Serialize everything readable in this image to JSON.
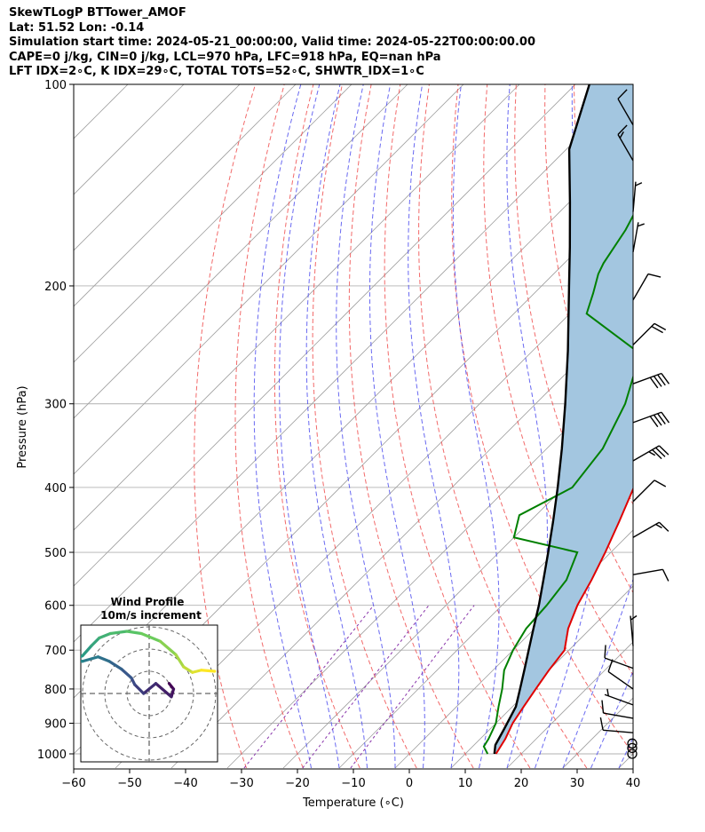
{
  "header": {
    "line1": "SkewTLogP BTTower_AMOF",
    "line2": "Lat: 51.52   Lon: -0.14",
    "line3": "Simulation start time: 2024-05-21_00:00:00, Valid time: 2024-05-22T00:00:00.00",
    "line4": "CAPE=0 j/kg, CIN=0 j/kg, LCL=970 hPa, LFC=918 hPa, EQ=nan hPa",
    "line5": "LFT IDX=2∘C, K IDX=29∘C, TOTAL TOTS=52∘C, SHWTR_IDX=1∘C"
  },
  "chart_data": {
    "type": "skewt-logp",
    "xlabel": "Temperature (∘C)",
    "ylabel": "Pressure (hPa)",
    "xlim": [
      -60,
      40
    ],
    "ylim": [
      1050,
      100
    ],
    "x_ticks": [
      -60,
      -50,
      -40,
      -30,
      -20,
      -10,
      0,
      10,
      20,
      30,
      40
    ],
    "x_tick_labels": [
      "−60",
      "−50",
      "−40",
      "−30",
      "−20",
      "−10",
      "0",
      "10",
      "20",
      "30",
      "40"
    ],
    "y_ticks": [
      100,
      200,
      300,
      400,
      500,
      600,
      700,
      800,
      900,
      1000
    ],
    "y_tick_labels": [
      "100",
      "200",
      "300",
      "400",
      "500",
      "600",
      "700",
      "800",
      "900",
      "1000"
    ],
    "grid": true,
    "colors": {
      "temperature": "#e00000",
      "dewpoint": "#008000",
      "parcel": "#000000",
      "cape_fill": "#a3c6e0",
      "dry_adiabat": "#f05050",
      "moist_adiabat": "#4444ee",
      "mixing_ratio": "#8833aa",
      "isotherm": "#a0a0a0"
    },
    "series": [
      {
        "key": "temperature",
        "points": [
          [
            15.5,
            1000
          ],
          [
            14.5,
            950
          ],
          [
            13.0,
            900
          ],
          [
            12.0,
            850
          ],
          [
            11.0,
            800
          ],
          [
            10.0,
            750
          ],
          [
            9.2,
            700
          ],
          [
            6.0,
            650
          ],
          [
            3.5,
            600
          ],
          [
            1.5,
            550
          ],
          [
            -1.0,
            500
          ],
          [
            -4.0,
            450
          ],
          [
            -7.5,
            400
          ],
          [
            -11.5,
            350
          ],
          [
            -16.0,
            300
          ],
          [
            -21.0,
            270
          ],
          [
            -24.5,
            250
          ],
          [
            -27.5,
            230
          ],
          [
            -30.5,
            210
          ],
          [
            -36.5,
            190
          ],
          [
            -42.0,
            170
          ],
          [
            -47.0,
            150
          ],
          [
            -52.5,
            130
          ],
          [
            -56.5,
            115
          ],
          [
            -58.5,
            100
          ]
        ]
      },
      {
        "key": "dewpoint",
        "points": [
          [
            14.0,
            1000
          ],
          [
            12.0,
            975
          ],
          [
            11.5,
            950
          ],
          [
            10.0,
            900
          ],
          [
            7.5,
            850
          ],
          [
            5.0,
            800
          ],
          [
            2.0,
            750
          ],
          [
            0.0,
            700
          ],
          [
            -1.5,
            650
          ],
          [
            -2.0,
            600
          ],
          [
            -3.0,
            550
          ],
          [
            -6.0,
            500
          ],
          [
            -20.0,
            475
          ],
          [
            -23.0,
            440
          ],
          [
            -18.5,
            400
          ],
          [
            -20.0,
            350
          ],
          [
            -24.0,
            300
          ],
          [
            -28.5,
            265
          ],
          [
            -31.5,
            250
          ],
          [
            -47.0,
            220
          ],
          [
            -49.5,
            205
          ],
          [
            -52.0,
            192
          ],
          [
            -53.0,
            185
          ],
          [
            -55.0,
            165
          ],
          [
            -59.0,
            140
          ],
          [
            -64.0,
            115
          ],
          [
            -67.0,
            100
          ]
        ]
      },
      {
        "key": "parcel",
        "points": [
          [
            15.2,
            1000
          ],
          [
            13.8,
            970
          ],
          [
            12.5,
            918
          ],
          [
            10.6,
            850
          ],
          [
            8.2,
            800
          ],
          [
            5.6,
            750
          ],
          [
            2.8,
            700
          ],
          [
            -0.2,
            650
          ],
          [
            -3.4,
            600
          ],
          [
            -7.1,
            550
          ],
          [
            -11.2,
            500
          ],
          [
            -15.8,
            450
          ],
          [
            -21.1,
            400
          ],
          [
            -27.3,
            350
          ],
          [
            -34.7,
            300
          ],
          [
            -43.7,
            250
          ],
          [
            -55.1,
            200
          ],
          [
            -61.9,
            175
          ],
          [
            -69.9,
            150
          ],
          [
            -79.5,
            125
          ],
          [
            -87.5,
            100
          ]
        ]
      }
    ],
    "wind_barbs": [
      {
        "pressure": 1000,
        "calm": true
      },
      {
        "pressure": 980,
        "calm": true
      },
      {
        "pressure": 965,
        "calm": true
      },
      {
        "pressure": 930,
        "speed_kt": 10,
        "direction_deg": 275
      },
      {
        "pressure": 885,
        "speed_kt": 10,
        "direction_deg": 280
      },
      {
        "pressure": 845,
        "speed_kt": 5,
        "direction_deg": 290
      },
      {
        "pressure": 800,
        "speed_kt": 10,
        "direction_deg": 305
      },
      {
        "pressure": 745,
        "speed_kt": 10,
        "direction_deg": 290
      },
      {
        "pressure": 690,
        "speed_kt": 5,
        "direction_deg": 355
      },
      {
        "pressure": 540,
        "speed_kt": 10,
        "direction_deg": 80
      },
      {
        "pressure": 475,
        "speed_kt": 15,
        "direction_deg": 60
      },
      {
        "pressure": 420,
        "speed_kt": 10,
        "direction_deg": 45
      },
      {
        "pressure": 365,
        "speed_kt": 35,
        "direction_deg": 60
      },
      {
        "pressure": 320,
        "speed_kt": 40,
        "direction_deg": 70
      },
      {
        "pressure": 280,
        "speed_kt": 40,
        "direction_deg": 70
      },
      {
        "pressure": 245,
        "speed_kt": 20,
        "direction_deg": 45
      },
      {
        "pressure": 210,
        "speed_kt": 10,
        "direction_deg": 30
      },
      {
        "pressure": 178,
        "speed_kt": 5,
        "direction_deg": 10
      },
      {
        "pressure": 155,
        "speed_kt": 5,
        "direction_deg": 5
      },
      {
        "pressure": 130,
        "speed_kt": 15,
        "direction_deg": 330
      },
      {
        "pressure": 115,
        "speed_kt": 10,
        "direction_deg": 330
      }
    ],
    "wind_profile": {
      "title_line1": "Wind Profile",
      "title_line2": "10m/s increment",
      "ring_count": 3,
      "points": [
        [
          1.8,
          0.9
        ],
        [
          2.2,
          0.4
        ],
        [
          2.0,
          -0.3
        ],
        [
          0.6,
          0.9
        ],
        [
          -0.5,
          0.0
        ],
        [
          -1.3,
          0.8
        ],
        [
          -1.6,
          1.4
        ],
        [
          -2.5,
          2.2
        ],
        [
          -3.6,
          2.9
        ],
        [
          -4.6,
          3.3
        ],
        [
          -6.0,
          2.9
        ],
        [
          -6.8,
          3.0
        ],
        [
          -6.0,
          3.4
        ],
        [
          -5.2,
          4.3
        ],
        [
          -4.5,
          5.0
        ],
        [
          -3.5,
          5.4
        ],
        [
          -2.0,
          5.6
        ],
        [
          -0.7,
          5.4
        ],
        [
          1.0,
          4.7
        ],
        [
          2.4,
          3.5
        ],
        [
          3.1,
          2.4
        ],
        [
          3.9,
          1.9
        ],
        [
          4.7,
          2.1
        ],
        [
          5.9,
          2.0
        ]
      ]
    }
  }
}
